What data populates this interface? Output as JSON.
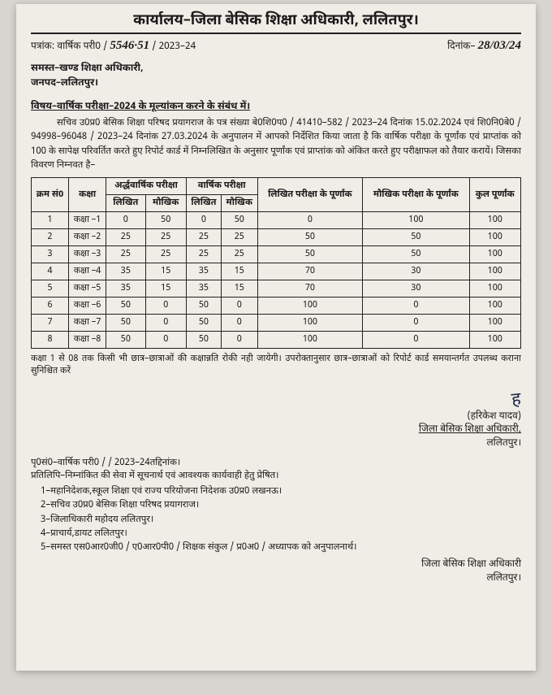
{
  "header": {
    "office_title": "कार्यालय–जिला बेसिक शिक्षा अधिकारी, ललितपुर।"
  },
  "ref": {
    "prefix": "पत्रांक: वार्षिक परी0 /",
    "number_hand": "5546·51",
    "year": "/ 2023–24",
    "date_label": "दिनांक–",
    "date_hand": "28/03/24"
  },
  "addressee": {
    "l1": "समस्त–खण्ड शिक्षा अधिकारी,",
    "l2": "जनपद–ललितपुर।"
  },
  "subject": "विषय–वार्षिक परीक्षा–2024 के मूल्यांकन करने के संबंध में।",
  "body": "सचिव उ0प्र0 बेसिक शिक्षा परिषद प्रयागराज के पत्र संख्या बे0शि0प0 / 41410–582 / 2023–24 दिनांक 15.02.2024 एवं शि0नि0बे0 / 94998–96048 / 2023–24 दिनांक 27.03.2024 के अनुपालन में आपको निर्देशित किया जाता है कि वार्षिक परीक्षा के पूर्णांक एवं प्राप्तांक को 100 के सापेक्ष परिवर्तित करते हुए रिपोर्ट कार्ड में निम्नलिखित के अनुसार पूर्णांक एवं प्राप्तांक को अंकित करते हुए परीक्षाफल को तैयार करायें। जिसका विवरण निम्नवत है–",
  "table": {
    "headers": {
      "sno": "क्रम सं0",
      "class": "कक्षा",
      "half": "अर्द्धवार्षिक परीक्षा",
      "annual": "वार्षिक परीक्षा",
      "written": "लिखित",
      "oral": "मौखिक",
      "written_full": "लिखित परीक्षा के पूर्णांक",
      "oral_full": "मौखिक परीक्षा के पूर्णांक",
      "total": "कुल पूर्णांक"
    },
    "rows": [
      {
        "sno": "1",
        "class": "कक्षा –1",
        "hw": "0",
        "ho": "50",
        "aw": "0",
        "ao": "50",
        "wf": "0",
        "of": "100",
        "tot": "100"
      },
      {
        "sno": "2",
        "class": "कक्षा –2",
        "hw": "25",
        "ho": "25",
        "aw": "25",
        "ao": "25",
        "wf": "50",
        "of": "50",
        "tot": "100"
      },
      {
        "sno": "3",
        "class": "कक्षा –3",
        "hw": "25",
        "ho": "25",
        "aw": "25",
        "ao": "25",
        "wf": "50",
        "of": "50",
        "tot": "100"
      },
      {
        "sno": "4",
        "class": "कक्षा –4",
        "hw": "35",
        "ho": "15",
        "aw": "35",
        "ao": "15",
        "wf": "70",
        "of": "30",
        "tot": "100"
      },
      {
        "sno": "5",
        "class": "कक्षा –5",
        "hw": "35",
        "ho": "15",
        "aw": "35",
        "ao": "15",
        "wf": "70",
        "of": "30",
        "tot": "100"
      },
      {
        "sno": "6",
        "class": "कक्षा –6",
        "hw": "50",
        "ho": "0",
        "aw": "50",
        "ao": "0",
        "wf": "100",
        "of": "0",
        "tot": "100"
      },
      {
        "sno": "7",
        "class": "कक्षा –7",
        "hw": "50",
        "ho": "0",
        "aw": "50",
        "ao": "0",
        "wf": "100",
        "of": "0",
        "tot": "100"
      },
      {
        "sno": "8",
        "class": "कक्षा –8",
        "hw": "50",
        "ho": "0",
        "aw": "50",
        "ao": "0",
        "wf": "100",
        "of": "0",
        "tot": "100"
      }
    ]
  },
  "note": "कक्षा 1 से 08 तक किसी भी छात्र–छात्राओं की कक्षान्नति रोकी नही जायेगी। उपरोक्तानुसार छात्र–छात्राओं को रिपोर्ट कार्ड समयान्तर्गत उपलब्ध कराना सुनिश्चित करें",
  "sign": {
    "name": "(हरिकेश यादव)",
    "desig": "जिला बेसिक शिक्षा अधिकारी,",
    "place": "ललितपुर।"
  },
  "footer_ref": "पृ0सं0–वार्षिक परी0 /                           / 2023–24तद्दिनांक।",
  "cc_intro": "प्रतिलिपि–निम्नांकित की सेवा में सूचनार्थ एवं आवश्यक कार्यवाही हेतु प्रेषित।",
  "cc": [
    "1–महानिदेशक,स्कूल शिक्षा एवं राज्य परियोजना निदेशक उ0प्र0 लखनऊ।",
    "2–सचिव उ0प्र0 बेसिक शिक्षा परिषद प्रयागराज।",
    "3–जिलाधिकारी महोदय ललितपुर।",
    "4–प्राचार्य,डायट ललितपुर।",
    "5–समस्त एस0आर0जी0 / ए0आर0पी0 / शिक्षक संकुल / प्र0अ0 / अध्यापक को अनुपालनार्थ।"
  ],
  "sign2": {
    "desig": "जिला बेसिक शिक्षा अधिकारी",
    "place": "ललितपुर।"
  }
}
